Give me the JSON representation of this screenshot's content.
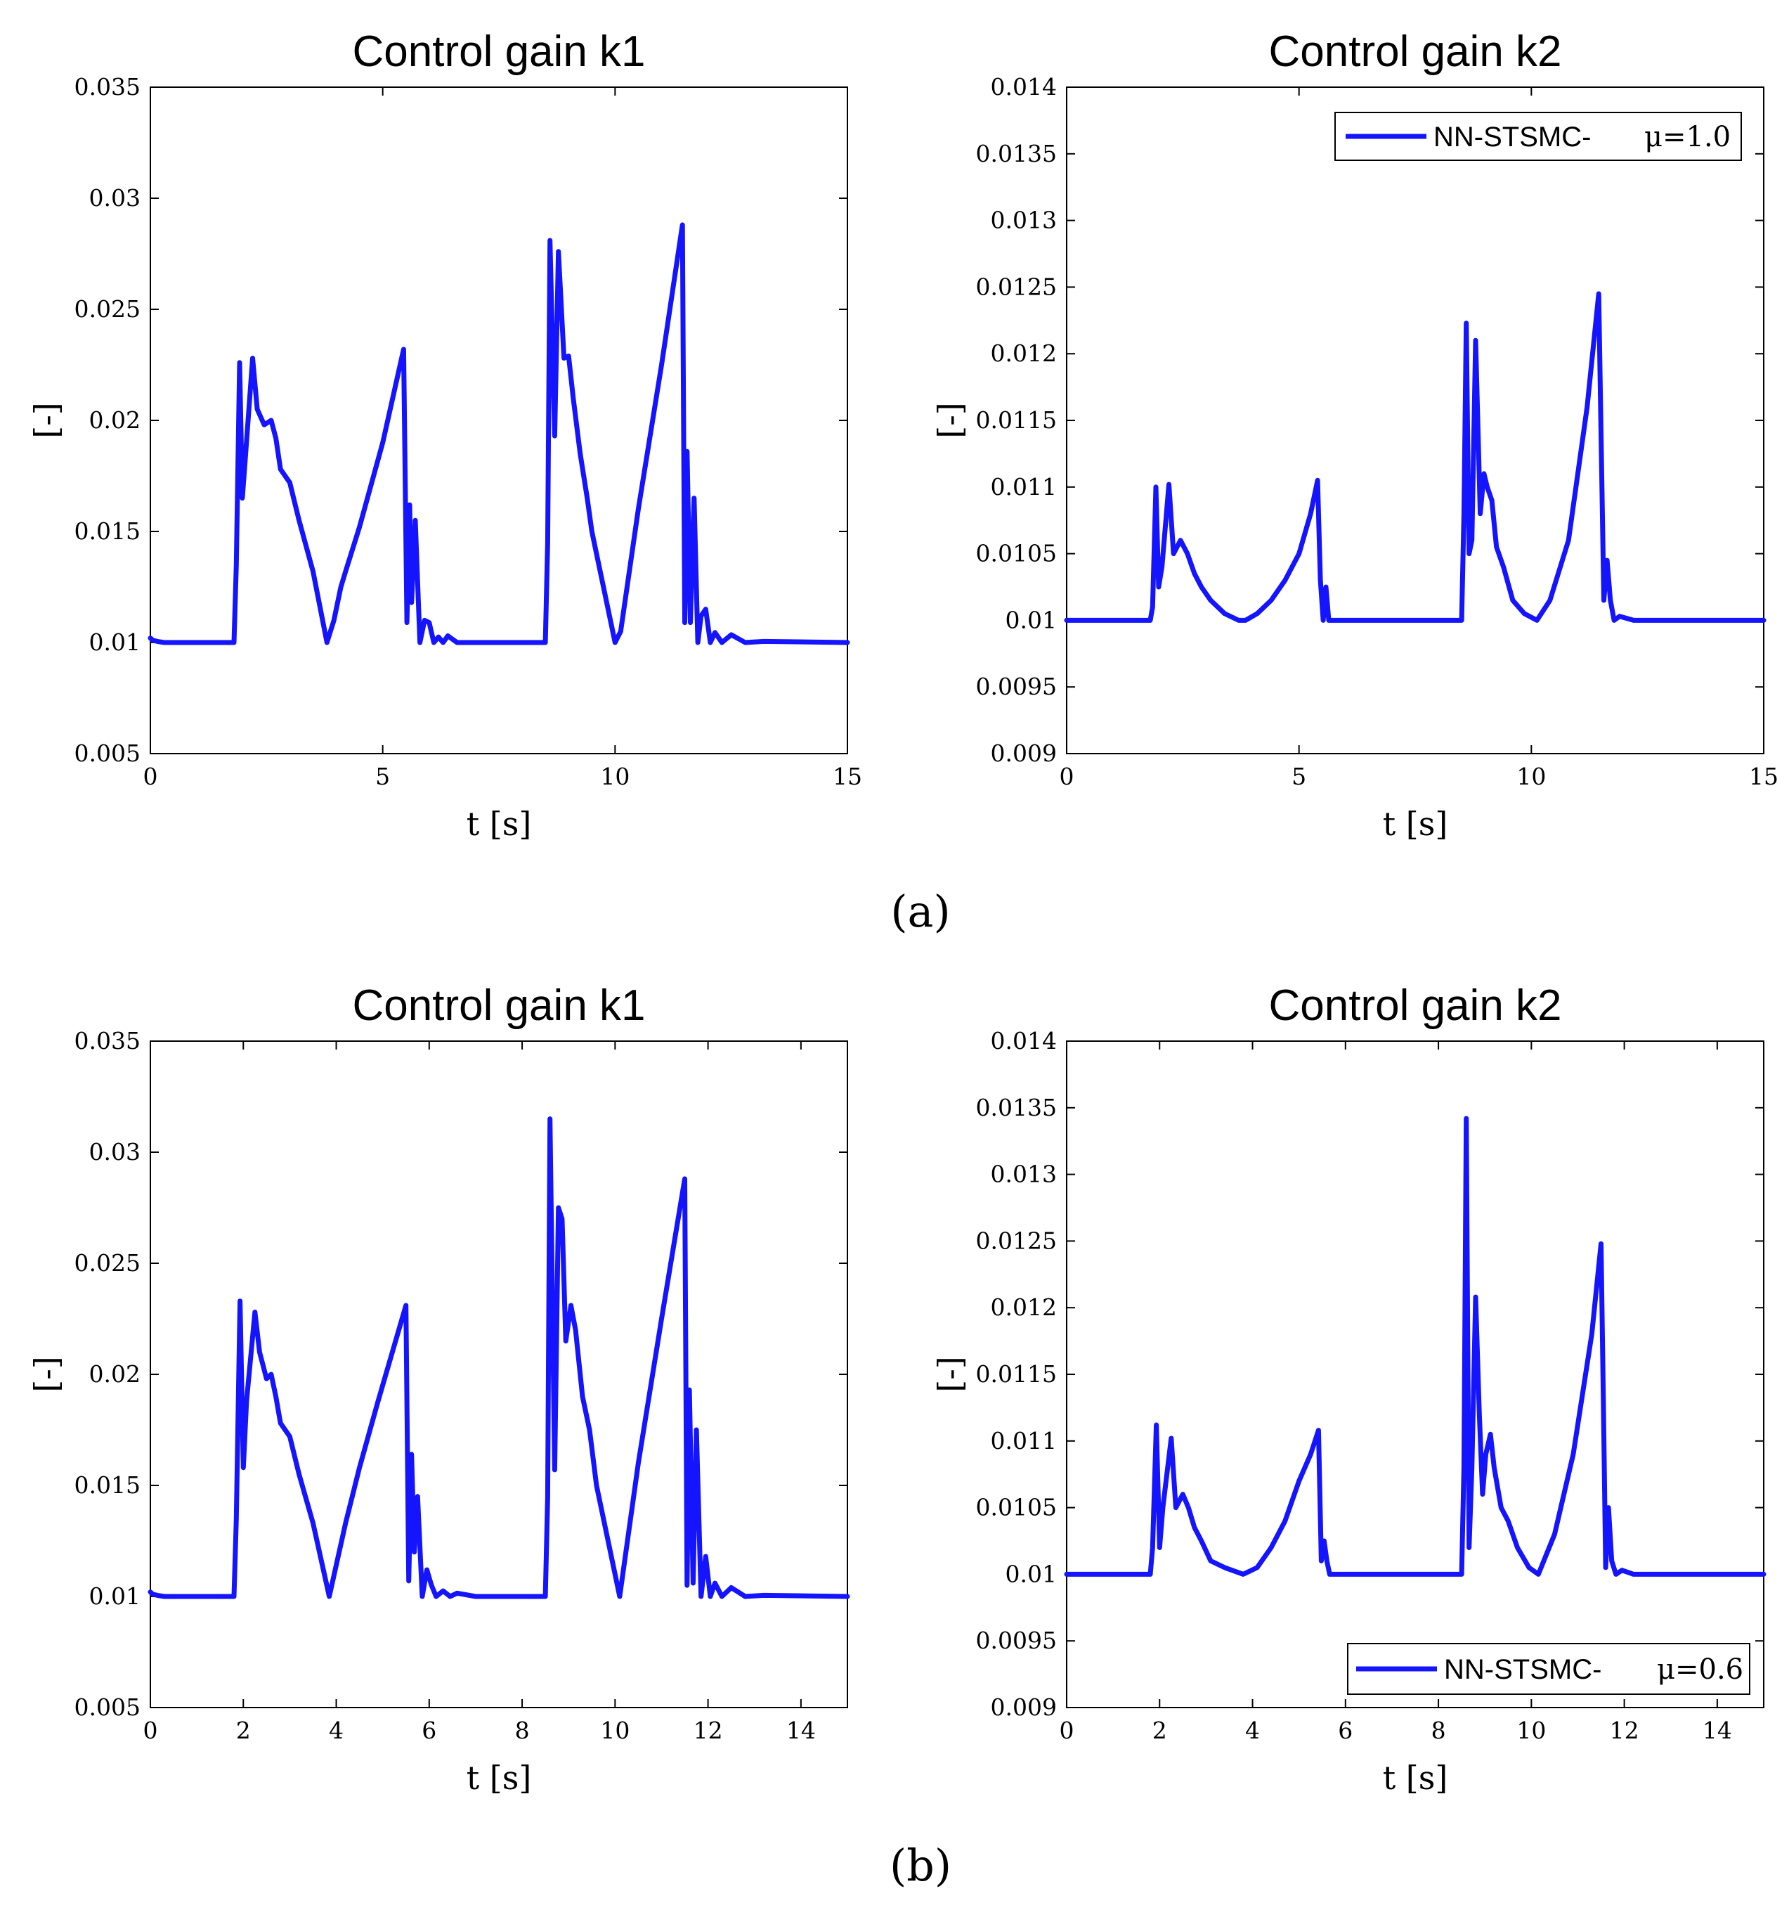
{
  "panel_labels": {
    "a": "(a)",
    "b": "(b)"
  },
  "colors": {
    "series": "#1414ff",
    "axes": "#000000"
  },
  "chart_data": [
    {
      "id": "a-k1",
      "type": "line",
      "title": "Control gain k1",
      "xlabel": "t [s]",
      "ylabel": "[-]",
      "xlim": [
        0,
        15
      ],
      "ylim": [
        0.005,
        0.035
      ],
      "xticks": [
        0,
        5,
        10,
        15
      ],
      "xtick_labels": [
        "0",
        "5",
        "10",
        "15"
      ],
      "yticks": [
        0.005,
        0.01,
        0.015,
        0.02,
        0.025,
        0.03,
        0.035
      ],
      "ytick_labels": [
        "0.005",
        "0.01",
        "0.015",
        "0.02",
        "0.025",
        "0.03",
        "0.035"
      ],
      "legend": null,
      "series": [
        {
          "name": "NN-STSMC- μ=1.0",
          "x": [
            0,
            0.05,
            0.15,
            0.3,
            1.8,
            1.85,
            1.92,
            1.98,
            2.05,
            2.2,
            2.3,
            2.45,
            2.6,
            2.7,
            2.8,
            3.0,
            3.2,
            3.5,
            3.8,
            3.95,
            4.1,
            4.2,
            4.5,
            5.0,
            5.45,
            5.52,
            5.58,
            5.62,
            5.7,
            5.8,
            5.9,
            6.0,
            6.1,
            6.2,
            6.3,
            6.4,
            6.6,
            7.0,
            8.5,
            8.55,
            8.6,
            8.7,
            8.78,
            8.9,
            9.0,
            9.1,
            9.25,
            9.4,
            9.5,
            9.7,
            10.0,
            10.12,
            10.5,
            11.0,
            11.45,
            11.5,
            11.55,
            11.62,
            11.7,
            11.78,
            11.85,
            11.95,
            12.05,
            12.15,
            12.3,
            12.5,
            12.8,
            13.2,
            15
          ],
          "y": [
            0.0102,
            0.0101,
            0.01005,
            0.01,
            0.01,
            0.0135,
            0.0226,
            0.0165,
            0.0185,
            0.0228,
            0.0205,
            0.0198,
            0.02,
            0.0192,
            0.0178,
            0.0172,
            0.0155,
            0.0132,
            0.01,
            0.011,
            0.0125,
            0.0132,
            0.0152,
            0.019,
            0.0232,
            0.0109,
            0.0162,
            0.0118,
            0.0155,
            0.01,
            0.011,
            0.0109,
            0.01,
            0.01025,
            0.01,
            0.0103,
            0.01,
            0.01,
            0.01,
            0.0145,
            0.0281,
            0.0193,
            0.0276,
            0.0228,
            0.0229,
            0.021,
            0.0185,
            0.0165,
            0.015,
            0.013,
            0.01,
            0.0105,
            0.016,
            0.0225,
            0.0288,
            0.0109,
            0.0186,
            0.0109,
            0.0165,
            0.01,
            0.0112,
            0.0115,
            0.01,
            0.01045,
            0.01,
            0.01035,
            0.01,
            0.01005,
            0.01
          ]
        }
      ]
    },
    {
      "id": "a-k2",
      "type": "line",
      "title": "Control gain k2",
      "xlabel": "t [s]",
      "ylabel": "[-]",
      "xlim": [
        0,
        15
      ],
      "ylim": [
        0.009,
        0.014
      ],
      "xticks": [
        0,
        5,
        10,
        15
      ],
      "xtick_labels": [
        "0",
        "5",
        "10",
        "15"
      ],
      "yticks": [
        0.009,
        0.0095,
        0.01,
        0.0105,
        0.011,
        0.0115,
        0.012,
        0.0125,
        0.013,
        0.0135,
        0.014
      ],
      "ytick_labels": [
        "0.009",
        "0.0095",
        "0.01",
        "0.0105",
        "0.011",
        "0.0115",
        "0.012",
        "0.0125",
        "0.013",
        "0.0135",
        "0.014"
      ],
      "legend": {
        "label": "NN-STSMC-",
        "mu": "μ=1.0",
        "position": "top-right"
      },
      "series": [
        {
          "name": "NN-STSMC- μ=1.0",
          "x": [
            0,
            1.8,
            1.85,
            1.92,
            1.98,
            2.05,
            2.2,
            2.3,
            2.45,
            2.6,
            2.75,
            2.9,
            3.1,
            3.4,
            3.7,
            3.85,
            4.1,
            4.4,
            4.7,
            5.0,
            5.25,
            5.4,
            5.46,
            5.52,
            5.58,
            5.64,
            5.72,
            5.85,
            6.2,
            8.5,
            8.55,
            8.6,
            8.66,
            8.72,
            8.8,
            8.9,
            8.98,
            9.05,
            9.15,
            9.25,
            9.4,
            9.6,
            9.85,
            10.12,
            10.4,
            10.8,
            11.2,
            11.45,
            11.5,
            11.56,
            11.63,
            11.7,
            11.78,
            11.9,
            12.2,
            15
          ],
          "y": [
            0.01,
            0.01,
            0.0101,
            0.011,
            0.01025,
            0.0104,
            0.01102,
            0.0105,
            0.0106,
            0.0105,
            0.01035,
            0.01025,
            0.01015,
            0.01005,
            0.01,
            0.01,
            0.01005,
            0.01015,
            0.0103,
            0.0105,
            0.0108,
            0.01105,
            0.0103,
            0.01,
            0.01025,
            0.01,
            0.01,
            0.01,
            0.01,
            0.01,
            0.0108,
            0.01223,
            0.0105,
            0.0106,
            0.0121,
            0.0108,
            0.0111,
            0.011,
            0.0109,
            0.01055,
            0.0104,
            0.01015,
            0.01005,
            0.01,
            0.01015,
            0.0106,
            0.0116,
            0.01245,
            0.0114,
            0.01015,
            0.01045,
            0.01015,
            0.01,
            0.01003,
            0.01,
            0.01
          ]
        }
      ]
    },
    {
      "id": "b-k1",
      "type": "line",
      "title": "Control gain k1",
      "xlabel": "t [s]",
      "ylabel": "[-]",
      "xlim": [
        0,
        15
      ],
      "ylim": [
        0.005,
        0.035
      ],
      "xticks": [
        0,
        2,
        4,
        6,
        8,
        10,
        12,
        14
      ],
      "xtick_labels": [
        "0",
        "2",
        "4",
        "6",
        "8",
        "10",
        "12",
        "14"
      ],
      "yticks": [
        0.005,
        0.01,
        0.015,
        0.02,
        0.025,
        0.03,
        0.035
      ],
      "ytick_labels": [
        "0.005",
        "0.01",
        "0.015",
        "0.02",
        "0.025",
        "0.03",
        "0.035"
      ],
      "legend": null,
      "series": [
        {
          "name": "NN-STSMC- μ=0.6",
          "x": [
            0,
            0.05,
            0.15,
            0.3,
            1.8,
            1.85,
            1.93,
            2.0,
            2.07,
            2.25,
            2.35,
            2.5,
            2.6,
            2.7,
            2.8,
            3.0,
            3.2,
            3.5,
            3.85,
            4.2,
            4.5,
            4.9,
            5.5,
            5.56,
            5.62,
            5.68,
            5.75,
            5.85,
            5.95,
            6.05,
            6.15,
            6.3,
            6.45,
            6.6,
            7.0,
            8.5,
            8.55,
            8.6,
            8.7,
            8.78,
            8.86,
            8.94,
            9.05,
            9.15,
            9.3,
            9.45,
            9.6,
            9.8,
            10.1,
            10.5,
            11.0,
            11.5,
            11.55,
            11.6,
            11.68,
            11.75,
            11.85,
            11.95,
            12.05,
            12.15,
            12.3,
            12.5,
            12.8,
            13.2,
            15
          ],
          "y": [
            0.0102,
            0.0101,
            0.01005,
            0.01,
            0.01,
            0.0135,
            0.0233,
            0.0158,
            0.0188,
            0.0228,
            0.021,
            0.0198,
            0.02,
            0.019,
            0.0178,
            0.0172,
            0.0155,
            0.0133,
            0.01,
            0.0133,
            0.0158,
            0.0188,
            0.0231,
            0.0107,
            0.0164,
            0.012,
            0.0145,
            0.01,
            0.0112,
            0.0105,
            0.01,
            0.01025,
            0.01,
            0.01015,
            0.01,
            0.01,
            0.0145,
            0.0315,
            0.0157,
            0.0275,
            0.027,
            0.0215,
            0.0231,
            0.022,
            0.019,
            0.0175,
            0.015,
            0.013,
            0.01,
            0.016,
            0.0225,
            0.0288,
            0.0105,
            0.0193,
            0.0106,
            0.0175,
            0.01,
            0.0118,
            0.01,
            0.0106,
            0.01,
            0.0104,
            0.01,
            0.01005,
            0.01
          ]
        }
      ]
    },
    {
      "id": "b-k2",
      "type": "line",
      "title": "Control gain k2",
      "xlabel": "t [s]",
      "ylabel": "[-]",
      "xlim": [
        0,
        15
      ],
      "ylim": [
        0.009,
        0.014
      ],
      "xticks": [
        0,
        2,
        4,
        6,
        8,
        10,
        12,
        14
      ],
      "xtick_labels": [
        "0",
        "2",
        "4",
        "6",
        "8",
        "10",
        "12",
        "14"
      ],
      "yticks": [
        0.009,
        0.0095,
        0.01,
        0.0105,
        0.011,
        0.0115,
        0.012,
        0.0125,
        0.013,
        0.0135,
        0.014
      ],
      "ytick_labels": [
        "0.009",
        "0.0095",
        "0.01",
        "0.0105",
        "0.011",
        "0.0115",
        "0.012",
        "0.0125",
        "0.013",
        "0.0135",
        "0.014"
      ],
      "legend": {
        "label": "NN-STSMC-",
        "mu": "μ=0.6",
        "position": "bottom-right"
      },
      "series": [
        {
          "name": "NN-STSMC- μ=0.6",
          "x": [
            0,
            1.8,
            1.85,
            1.93,
            2.0,
            2.07,
            2.25,
            2.35,
            2.5,
            2.62,
            2.75,
            2.9,
            3.1,
            3.4,
            3.8,
            4.1,
            4.4,
            4.7,
            5.0,
            5.25,
            5.42,
            5.48,
            5.54,
            5.6,
            5.66,
            5.75,
            5.9,
            6.2,
            8.5,
            8.55,
            8.6,
            8.66,
            8.72,
            8.8,
            8.88,
            8.95,
            9.02,
            9.12,
            9.2,
            9.35,
            9.5,
            9.7,
            9.95,
            10.15,
            10.5,
            10.9,
            11.3,
            11.5,
            11.55,
            11.6,
            11.66,
            11.73,
            11.82,
            11.95,
            12.2,
            15
          ],
          "y": [
            0.01,
            0.01,
            0.0102,
            0.01112,
            0.0102,
            0.0105,
            0.01102,
            0.0105,
            0.0106,
            0.0105,
            0.01035,
            0.01025,
            0.0101,
            0.01005,
            0.01,
            0.01005,
            0.0102,
            0.0104,
            0.0107,
            0.0109,
            0.01108,
            0.0101,
            0.01025,
            0.0101,
            0.01,
            0.01,
            0.01,
            0.01,
            0.01,
            0.0108,
            0.01342,
            0.0102,
            0.0108,
            0.01208,
            0.0112,
            0.0106,
            0.0109,
            0.01105,
            0.0108,
            0.0105,
            0.0104,
            0.0102,
            0.01005,
            0.01,
            0.0103,
            0.0109,
            0.0118,
            0.01248,
            0.0113,
            0.01005,
            0.0105,
            0.0101,
            0.01,
            0.01003,
            0.01,
            0.01
          ]
        }
      ]
    }
  ]
}
